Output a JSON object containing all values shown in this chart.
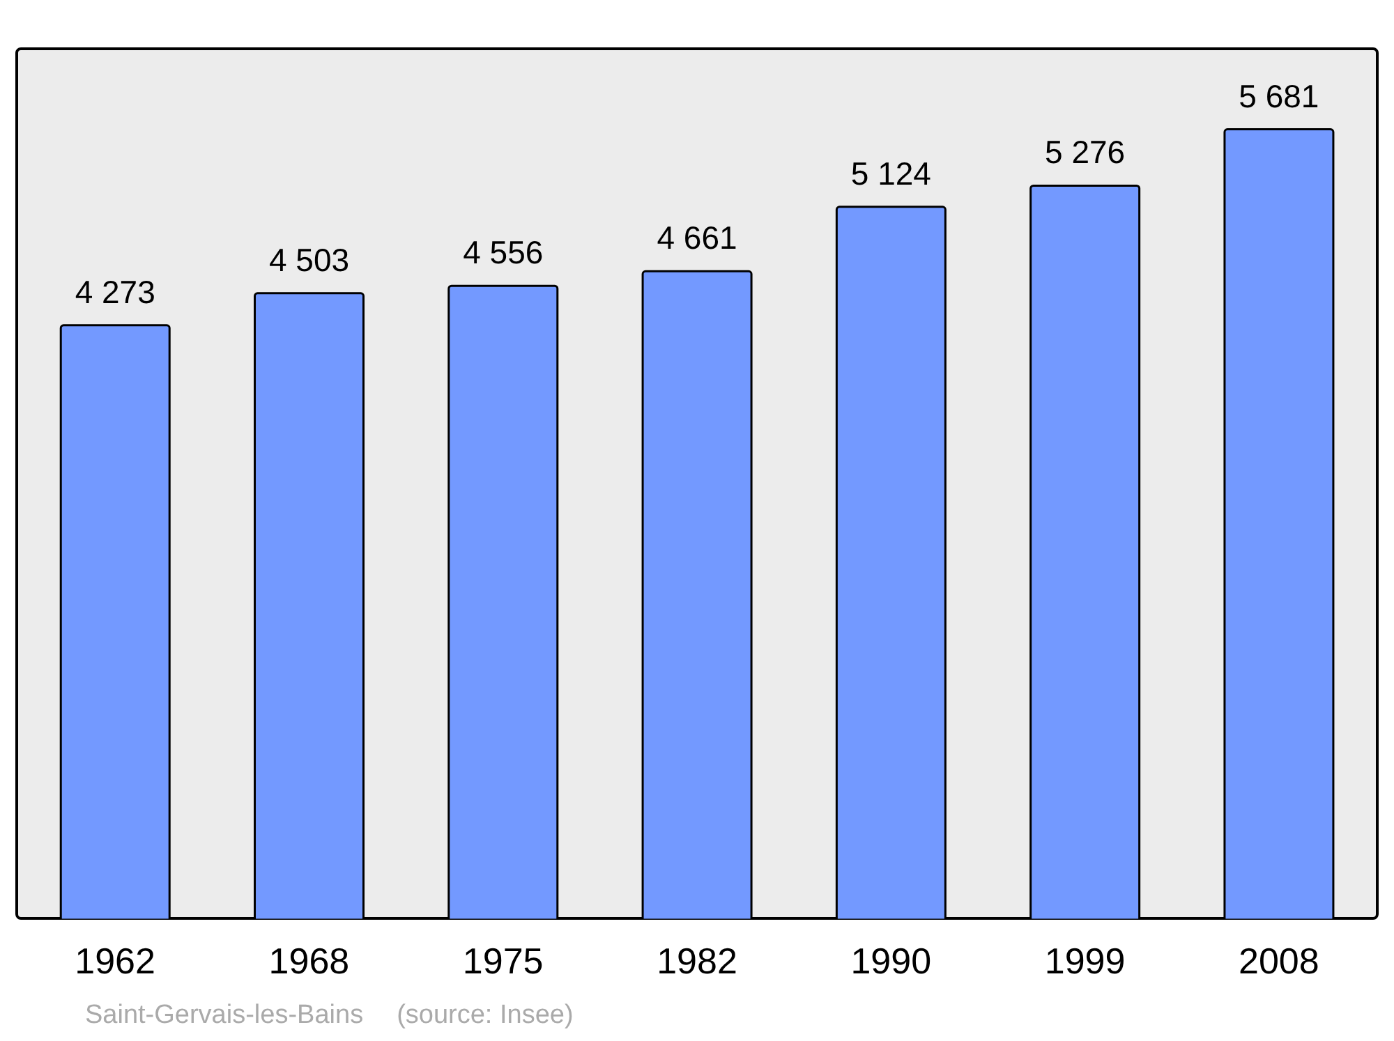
{
  "chart_data": {
    "type": "bar",
    "categories": [
      "1962",
      "1968",
      "1975",
      "1982",
      "1990",
      "1999",
      "2008"
    ],
    "values": [
      4273,
      4503,
      4556,
      4661,
      5124,
      5276,
      5681
    ],
    "value_labels": [
      "4 273",
      "4 503",
      "4 556",
      "4 661",
      "5 124",
      "5 276",
      "5 681"
    ],
    "color": "#7399ff",
    "ylim": [
      0,
      6250
    ],
    "annotations": [
      "Saint-Gervais-les-Bains",
      "(source: Insee)"
    ]
  }
}
